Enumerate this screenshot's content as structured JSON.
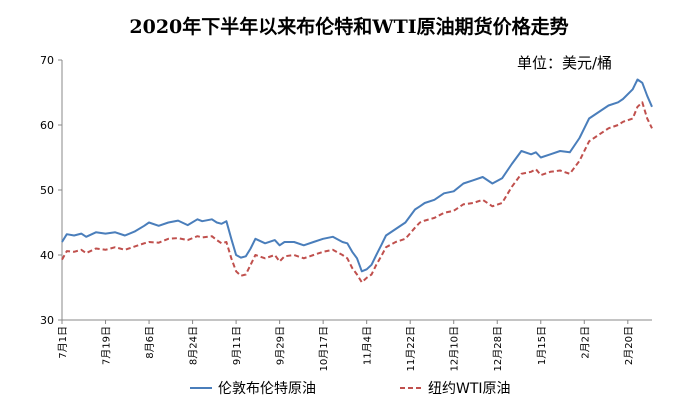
{
  "chart_data": {
    "type": "line",
    "title": "2020年下半年以来布伦特和WTI原油期货价格走势",
    "unit_label": "单位：美元/桶",
    "ylim": [
      30,
      70
    ],
    "yticks": [
      30,
      40,
      50,
      60,
      70
    ],
    "x_tick_labels": [
      "7月1日",
      "7月19日",
      "8月6日",
      "8月24日",
      "9月11日",
      "9月29日",
      "10月17日",
      "11月4日",
      "11月22日",
      "12月10日",
      "12月28日",
      "1月15日",
      "2月2日",
      "2月20日"
    ],
    "x_tick_values": [
      0,
      18,
      36,
      54,
      72,
      90,
      108,
      126,
      144,
      162,
      180,
      198,
      216,
      234
    ],
    "xlim": [
      0,
      244
    ],
    "grid": false,
    "legend_placement": "bottom",
    "series": [
      {
        "name": "伦敦布伦特原油",
        "color": "#4a7ebb",
        "style": "solid",
        "x": [
          0,
          2,
          5,
          8,
          10,
          14,
          18,
          22,
          26,
          30,
          34,
          36,
          40,
          44,
          48,
          52,
          56,
          58,
          62,
          64,
          66,
          68,
          70,
          72,
          74,
          76,
          78,
          80,
          84,
          88,
          90,
          92,
          96,
          100,
          104,
          108,
          112,
          116,
          118,
          120,
          122,
          124,
          126,
          128,
          130,
          132,
          134,
          138,
          142,
          146,
          148,
          150,
          154,
          158,
          162,
          166,
          170,
          174,
          178,
          182,
          186,
          190,
          194,
          196,
          198,
          202,
          206,
          210,
          214,
          218,
          222,
          226,
          230,
          232,
          236,
          238,
          240,
          242,
          244
        ],
        "y": [
          42.0,
          43.2,
          43.0,
          43.3,
          42.8,
          43.5,
          43.3,
          43.5,
          43.0,
          43.6,
          44.5,
          45.0,
          44.5,
          45.0,
          45.3,
          44.6,
          45.5,
          45.2,
          45.5,
          45.0,
          44.8,
          45.2,
          42.5,
          40.0,
          39.6,
          39.8,
          41.0,
          42.5,
          41.8,
          42.3,
          41.5,
          42.0,
          42.0,
          41.5,
          42.0,
          42.5,
          42.8,
          42.0,
          41.8,
          40.5,
          39.5,
          37.5,
          37.8,
          38.5,
          40.0,
          41.5,
          43.0,
          44.0,
          45.0,
          47.0,
          47.5,
          48.0,
          48.5,
          49.5,
          49.8,
          51.0,
          51.5,
          52.0,
          51.0,
          51.8,
          54.0,
          56.0,
          55.5,
          55.8,
          55.0,
          55.5,
          56.0,
          55.8,
          58.0,
          61.0,
          62.0,
          63.0,
          63.5,
          64.0,
          65.5,
          67.0,
          66.5,
          64.5,
          62.8
        ]
      },
      {
        "name": "纽约WTI原油",
        "color": "#c0504d",
        "style": "dashed",
        "x": [
          0,
          2,
          5,
          8,
          10,
          14,
          18,
          22,
          26,
          30,
          34,
          36,
          40,
          44,
          48,
          52,
          56,
          58,
          62,
          64,
          66,
          68,
          70,
          72,
          74,
          76,
          78,
          80,
          84,
          88,
          90,
          92,
          96,
          100,
          104,
          108,
          112,
          116,
          118,
          120,
          122,
          124,
          126,
          128,
          130,
          132,
          134,
          138,
          142,
          146,
          148,
          150,
          154,
          158,
          162,
          166,
          170,
          174,
          178,
          182,
          186,
          190,
          194,
          196,
          198,
          202,
          206,
          210,
          214,
          218,
          222,
          226,
          230,
          232,
          236,
          238,
          240,
          242,
          244
        ],
        "y": [
          39.3,
          40.6,
          40.5,
          40.8,
          40.3,
          41.0,
          40.8,
          41.2,
          40.8,
          41.3,
          41.8,
          42.0,
          41.9,
          42.5,
          42.6,
          42.3,
          42.9,
          42.7,
          42.9,
          42.3,
          41.8,
          42.0,
          39.5,
          37.5,
          36.8,
          37.0,
          38.5,
          40.0,
          39.5,
          40.0,
          39.0,
          39.8,
          40.0,
          39.5,
          40.0,
          40.5,
          40.8,
          40.0,
          39.5,
          38.0,
          37.0,
          35.8,
          36.5,
          37.0,
          38.5,
          39.8,
          41.2,
          42.0,
          42.5,
          44.2,
          45.0,
          45.3,
          45.7,
          46.5,
          46.8,
          47.8,
          48.0,
          48.5,
          47.5,
          48.0,
          50.5,
          52.5,
          52.8,
          53.2,
          52.3,
          52.8,
          53.0,
          52.5,
          54.5,
          57.5,
          58.5,
          59.5,
          60.0,
          60.5,
          61.0,
          62.8,
          63.5,
          61.0,
          59.5
        ]
      }
    ]
  }
}
